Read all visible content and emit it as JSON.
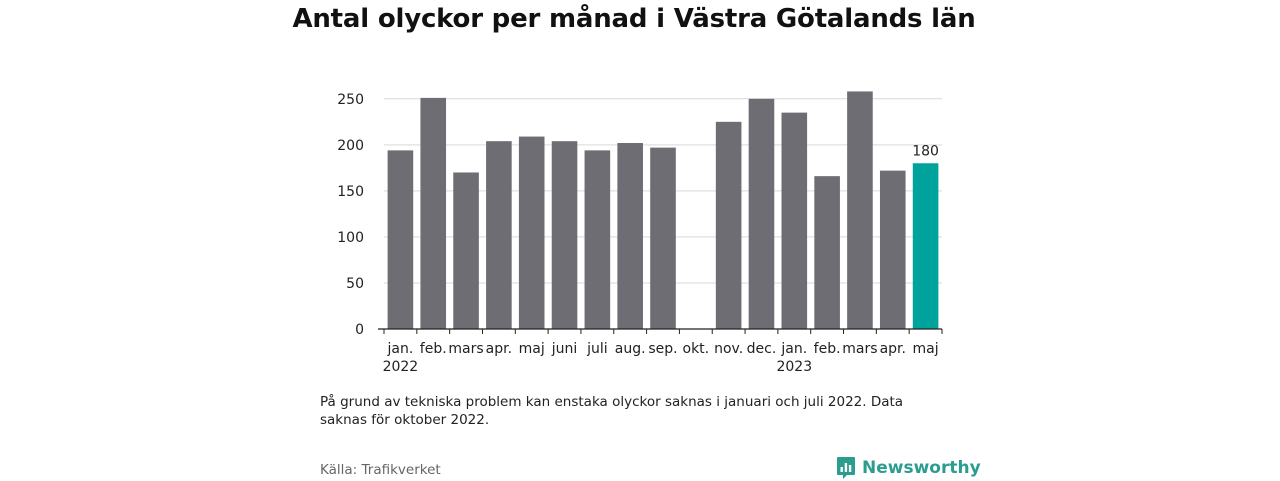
{
  "page": {
    "title": "Antal olyckor per månad i Västra Götalands län",
    "footnote": "På grund av tekniska problem kan enstaka olyckor saknas i januari och juli 2022. Data saknas för oktober 2022.",
    "source": "Källa: Trafikverket",
    "brand": "Newsworthy"
  },
  "colors": {
    "bar": "#6e6d73",
    "highlight": "#00a39b",
    "grid": "#d9d9d9",
    "brand": "#2a9d8f"
  },
  "chart_data": {
    "type": "bar",
    "title": "Antal olyckor per månad i Västra Götalands län",
    "xlabel": "",
    "ylabel": "",
    "ylim": [
      0,
      265
    ],
    "yticks": [
      0,
      50,
      100,
      150,
      200,
      250
    ],
    "grid": true,
    "categories": [
      "jan.",
      "feb.",
      "mars",
      "apr.",
      "maj",
      "juni",
      "juli",
      "aug.",
      "sep.",
      "okt.",
      "nov.",
      "dec.",
      "jan.",
      "feb.",
      "mars",
      "apr.",
      "maj"
    ],
    "year_labels": [
      {
        "index": 0,
        "label": "2022"
      },
      {
        "index": 12,
        "label": "2023"
      }
    ],
    "values": [
      194,
      251,
      170,
      204,
      209,
      204,
      194,
      202,
      197,
      null,
      225,
      250,
      235,
      166,
      258,
      172,
      180
    ],
    "highlight_index": 16,
    "data_labels": [
      {
        "index": 16,
        "label": "180"
      }
    ]
  }
}
